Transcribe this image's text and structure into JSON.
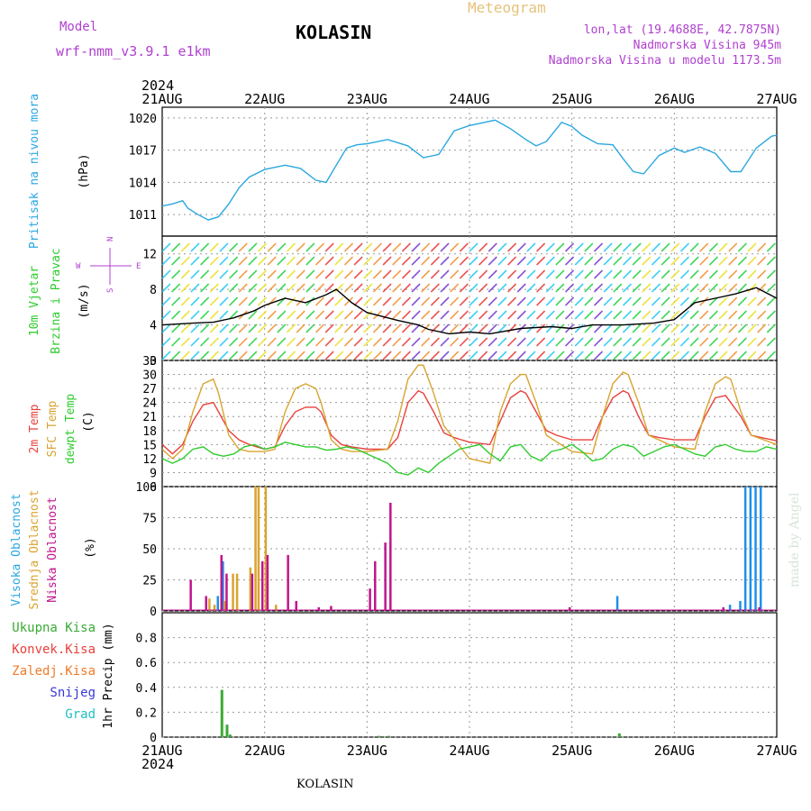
{
  "header": {
    "model_label": "Model",
    "model_name": "wrf-nmm_v3.9.1 e1km",
    "station": "KOLASIN",
    "product": "Meteogram",
    "lonlat": "lon,lat (19.4688E, 42.7875N)",
    "altitude": "Nadmorska Visina 945m",
    "model_altitude": "Nadmorska Visina u modelu 1173.5m",
    "footer_station": "KOLASIN",
    "credit": "made by Angel"
  },
  "colors": {
    "pressure": "#2aa7e0",
    "temp2m": "#e8413c",
    "sfc_temp": "#d9a430",
    "dewpt": "#2ecc2e",
    "cloud_high": "#1e90e8",
    "cloud_mid": "#d9a430",
    "cloud_low": "#c0148c",
    "precip_total": "#3aaa35",
    "precip_conv": "#e8413c",
    "precip_frozen": "#f07a2a",
    "snow": "#3838d8",
    "hail": "#20c0c0",
    "title_purple": "#b040d0"
  },
  "time_axis": {
    "year": "2024",
    "labels": [
      "21AUG",
      "22AUG",
      "23AUG",
      "24AUG",
      "25AUG",
      "26AUG",
      "27AUG"
    ]
  },
  "chart_data": [
    {
      "type": "line",
      "panel": "pressure",
      "ylabel": [
        "Pritisak na nivou mora",
        "(hPa)"
      ],
      "ylim": [
        1009,
        1021
      ],
      "yticks": [
        1011,
        1014,
        1017,
        1020
      ],
      "x_unit": "days since 21AUG 00UTC",
      "series": [
        {
          "x": [
            0,
            0.1,
            0.2,
            0.25,
            0.35,
            0.45,
            0.55,
            0.65,
            0.75,
            0.85,
            1.0,
            1.2,
            1.35,
            1.5,
            1.6,
            1.7,
            1.8,
            1.9,
            2.0,
            2.2,
            2.4,
            2.55,
            2.7,
            2.85,
            3.0,
            3.1,
            3.25,
            3.4,
            3.55,
            3.65,
            3.75,
            3.9,
            4.0,
            4.1,
            4.25,
            4.4,
            4.5,
            4.6,
            4.7,
            4.85,
            5.0,
            5.1,
            5.25,
            5.4,
            5.55,
            5.65,
            5.8,
            5.95,
            6.0
          ],
          "values": [
            1011.8,
            1012,
            1012.3,
            1011.6,
            1011,
            1010.5,
            1010.8,
            1012,
            1013.5,
            1014.5,
            1015.2,
            1015.6,
            1015.3,
            1014.2,
            1014,
            1015.6,
            1017.2,
            1017.5,
            1017.6,
            1018,
            1017.4,
            1016.3,
            1016.6,
            1018.8,
            1019.3,
            1019.5,
            1019.8,
            1019,
            1018,
            1017.4,
            1017.8,
            1019.6,
            1019.2,
            1018.4,
            1017.6,
            1017.5,
            1016.2,
            1015,
            1014.8,
            1016.5,
            1017.2,
            1016.8,
            1017.3,
            1016.7,
            1015,
            1015,
            1017.2,
            1018.3,
            1018.4
          ]
        }
      ]
    },
    {
      "type": "line",
      "panel": "wind",
      "ylabel": [
        "10m Vjetar",
        "Brzina i Pravac",
        "(m/s)"
      ],
      "compass": {
        "n": "N",
        "s": "S",
        "e": "E",
        "w": "W"
      },
      "ylim": [
        0,
        14
      ],
      "yticks": [
        0,
        4,
        8,
        12
      ],
      "series": [
        {
          "name": "speed",
          "x": [
            0,
            0.3,
            0.5,
            0.7,
            0.9,
            1.0,
            1.2,
            1.4,
            1.6,
            1.7,
            1.85,
            2.0,
            2.3,
            2.5,
            2.6,
            2.8,
            3.0,
            3.2,
            3.5,
            3.8,
            4.0,
            4.2,
            4.5,
            4.8,
            5.0,
            5.2,
            5.4,
            5.6,
            5.8,
            6.0
          ],
          "values": [
            4,
            4.2,
            4.3,
            4.8,
            5.6,
            6.2,
            7,
            6.5,
            7.4,
            8,
            6.5,
            5.4,
            4.5,
            4,
            3.5,
            3,
            3.2,
            3,
            3.6,
            3.8,
            3.6,
            4,
            4,
            4.2,
            4.6,
            6.5,
            7,
            7.5,
            8.2,
            7
          ]
        }
      ]
    },
    {
      "type": "line",
      "panel": "temperature",
      "ylabel": [
        "2m Temp",
        "SFC Temp",
        "dewpt Temp",
        "(C)"
      ],
      "ylim": [
        6,
        33
      ],
      "yticks": [
        6,
        9,
        12,
        15,
        18,
        21,
        24,
        27,
        30,
        33
      ],
      "series": [
        {
          "name": "2m Temp",
          "x": [
            0,
            0.1,
            0.2,
            0.3,
            0.4,
            0.5,
            0.55,
            0.65,
            0.75,
            0.85,
            1.0,
            1.1,
            1.2,
            1.3,
            1.4,
            1.5,
            1.55,
            1.65,
            1.75,
            1.85,
            2.0,
            2.2,
            2.3,
            2.4,
            2.5,
            2.55,
            2.65,
            2.75,
            2.85,
            3.0,
            3.2,
            3.3,
            3.4,
            3.5,
            3.55,
            3.65,
            3.75,
            3.85,
            4.0,
            4.2,
            4.3,
            4.4,
            4.5,
            4.55,
            4.65,
            4.75,
            4.85,
            5.0,
            5.2,
            5.3,
            5.4,
            5.5,
            5.55,
            5.65,
            5.75,
            5.85,
            6.0
          ],
          "values": [
            15,
            13,
            15,
            20,
            23.5,
            24,
            22,
            18,
            16,
            15,
            14,
            14.5,
            19,
            22,
            23,
            23,
            22,
            17,
            15,
            14.5,
            14,
            14,
            16.5,
            24,
            26.5,
            26,
            22,
            17.5,
            16.5,
            15.5,
            15,
            20,
            25,
            26.5,
            26,
            22,
            18,
            17,
            16,
            16,
            21,
            25,
            26.5,
            26,
            21,
            17,
            16.5,
            16,
            16,
            21,
            25,
            25.5,
            24,
            21,
            17,
            16.5,
            15.8
          ]
        },
        {
          "name": "SFC Temp",
          "x": [
            0,
            0.1,
            0.2,
            0.3,
            0.4,
            0.5,
            0.55,
            0.65,
            0.75,
            0.85,
            1.0,
            1.1,
            1.2,
            1.3,
            1.4,
            1.5,
            1.55,
            1.65,
            1.75,
            1.85,
            2.0,
            2.2,
            2.3,
            2.4,
            2.5,
            2.55,
            2.65,
            2.75,
            3.0,
            3.2,
            3.3,
            3.4,
            3.5,
            3.55,
            3.65,
            3.75,
            4.0,
            4.2,
            4.3,
            4.4,
            4.5,
            4.55,
            4.65,
            4.75,
            5.0,
            5.2,
            5.3,
            5.4,
            5.5,
            5.55,
            5.65,
            5.75,
            6.0
          ],
          "values": [
            14,
            12,
            14,
            22,
            28,
            29,
            26,
            17,
            14,
            13.5,
            13.5,
            14,
            22,
            27,
            28,
            27,
            24,
            16,
            14,
            13.5,
            13.5,
            14,
            20,
            29,
            32,
            32,
            26,
            19,
            12,
            11,
            22,
            28,
            30,
            30,
            24,
            17,
            13.5,
            13,
            21,
            28,
            30.5,
            30,
            24,
            17,
            14.5,
            14,
            22,
            28,
            29.5,
            29,
            22,
            17,
            15
          ]
        },
        {
          "name": "dewpt Temp",
          "x": [
            0,
            0.1,
            0.2,
            0.3,
            0.4,
            0.5,
            0.6,
            0.7,
            0.8,
            0.9,
            1.0,
            1.1,
            1.2,
            1.3,
            1.4,
            1.5,
            1.6,
            1.7,
            1.8,
            1.9,
            2.0,
            2.1,
            2.2,
            2.3,
            2.4,
            2.5,
            2.6,
            2.7,
            2.8,
            2.9,
            3.0,
            3.1,
            3.2,
            3.3,
            3.4,
            3.5,
            3.6,
            3.7,
            3.8,
            3.9,
            4.0,
            4.1,
            4.2,
            4.3,
            4.4,
            4.5,
            4.6,
            4.7,
            4.8,
            4.9,
            5.0,
            5.1,
            5.2,
            5.3,
            5.4,
            5.5,
            5.6,
            5.7,
            5.8,
            5.9,
            6.0
          ],
          "values": [
            12,
            11,
            12,
            14,
            14.5,
            13,
            12.5,
            13,
            14.5,
            15,
            14,
            14.5,
            15.5,
            15,
            14.5,
            14.5,
            13.8,
            14,
            14.5,
            14,
            13,
            12,
            11,
            9,
            8.5,
            10,
            9,
            11,
            12.5,
            14,
            14.5,
            15,
            13,
            11.5,
            14.5,
            15,
            12.5,
            11.5,
            13.5,
            14,
            15,
            13.5,
            11.5,
            12,
            14,
            15,
            14.5,
            12.5,
            13.5,
            14.5,
            15,
            14,
            13,
            12.5,
            14.5,
            15,
            14,
            13.5,
            13.5,
            14.5,
            14
          ]
        }
      ]
    },
    {
      "type": "bar",
      "panel": "clouds",
      "ylabel": [
        "Visoka Oblacnost",
        "Srednja Oblacnost",
        "Niska Oblacnost",
        "(%)"
      ],
      "ylim": [
        0,
        100
      ],
      "yticks": [
        0,
        25,
        50,
        75,
        100
      ],
      "series": [
        {
          "name": "Visoka Oblacnost",
          "x": [
            0.55,
            0.6,
            4.45,
            5.55,
            5.65,
            5.7,
            5.75,
            5.8,
            5.85
          ],
          "values": [
            12,
            40,
            12,
            5,
            8,
            100,
            100,
            100,
            100
          ]
        },
        {
          "name": "Srednja Oblacnost",
          "x": [
            0.45,
            0.5,
            0.6,
            0.68,
            0.72,
            0.85,
            0.9,
            0.93,
            1.0,
            1.1
          ],
          "values": [
            10,
            5,
            8,
            30,
            30,
            35,
            100,
            100,
            100,
            5
          ]
        },
        {
          "name": "Niska Oblacnost",
          "x": [
            0.25,
            0.4,
            0.55,
            0.6,
            0.85,
            0.95,
            1.0,
            1.2,
            1.28,
            1.5,
            1.62,
            2.0,
            2.05,
            2.15,
            2.2,
            3.95,
            5.45,
            5.8
          ],
          "values": [
            25,
            12,
            45,
            30,
            30,
            40,
            45,
            45,
            8,
            3,
            4,
            18,
            40,
            55,
            87,
            3,
            3,
            3
          ]
        }
      ]
    },
    {
      "type": "bar",
      "panel": "precip",
      "ylabel": [
        "1hr Precip (mm)"
      ],
      "legend": [
        "Ukupna Kisa",
        "Konvek.Kisa",
        "Zaledj.Kisa",
        "Snijeg",
        "Grad"
      ],
      "ylim": [
        0,
        1.0
      ],
      "yticks": [
        "0",
        "0.2",
        "0.4",
        "0.6",
        "0.8"
      ],
      "series": [
        {
          "name": "Ukupna Kisa",
          "x": [
            0.57,
            0.62,
            0.65,
            2.1,
            2.2,
            4.45
          ],
          "values": [
            0.38,
            0.1,
            0.02,
            0.01,
            0.01,
            0.03
          ]
        }
      ]
    }
  ]
}
